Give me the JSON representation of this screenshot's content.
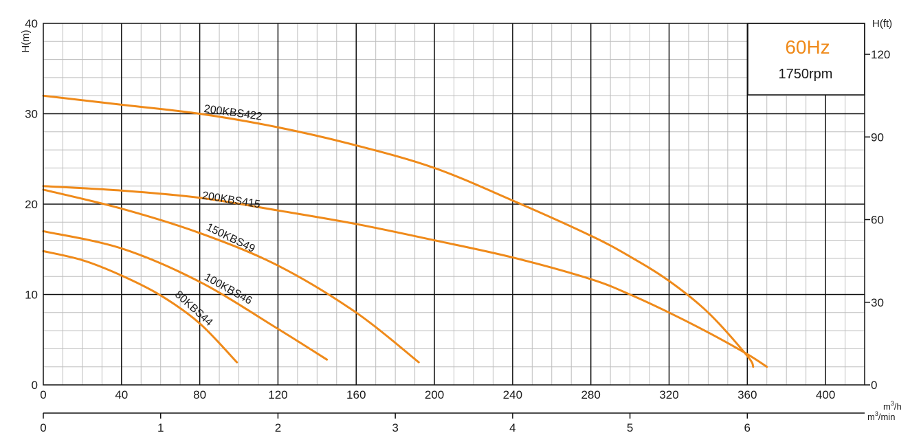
{
  "chart_data": {
    "type": "line",
    "title": "",
    "frequency_label": "60Hz",
    "speed_label": "1750rpm",
    "colors": {
      "curve": "#ef8a1a",
      "frequency_text": "#ef8a1a",
      "grid_major": "#111111",
      "grid_minor": "#bdbdbd"
    },
    "grid": true,
    "x": {
      "label_primary": "m³/h",
      "label_primary_base": "m",
      "label_primary_sup": "3",
      "label_primary_tail": "/h",
      "label_secondary_base": "m",
      "label_secondary_sup": "3",
      "label_secondary_tail": "/min",
      "range": [
        0,
        420
      ],
      "ticks": [
        0,
        40,
        80,
        120,
        160,
        200,
        240,
        280,
        320,
        360,
        400
      ],
      "tick_labels": [
        "0",
        "40",
        "80",
        "120",
        "160",
        "200",
        "240",
        "280",
        "320",
        "360",
        "400"
      ],
      "secondary_ticks": [
        0,
        1,
        2,
        3,
        4,
        5,
        6
      ],
      "secondary_tick_labels": [
        "0",
        "1",
        "2",
        "3",
        "4",
        "5",
        "6"
      ]
    },
    "y": {
      "label_left": "H(m)",
      "label_right": "H(ft)",
      "range": [
        0,
        40
      ],
      "ticks": [
        0,
        10,
        20,
        30,
        40
      ],
      "tick_labels": [
        "0",
        "10",
        "20",
        "30",
        "40"
      ],
      "right_ticks_ft": [
        0,
        30,
        60,
        90,
        120
      ],
      "right_tick_labels": [
        "0",
        "30",
        "60",
        "90",
        "120"
      ]
    },
    "series": [
      {
        "name": "200KBS422",
        "x": [
          0,
          40,
          80,
          120,
          160,
          200,
          240,
          280,
          300,
          320,
          340,
          360,
          363
        ],
        "y": [
          32,
          31,
          30,
          28.5,
          26.5,
          24,
          20.4,
          16.5,
          14.2,
          11.5,
          8,
          3.2,
          2
        ]
      },
      {
        "name": "200KBS415",
        "x": [
          0,
          40,
          80,
          120,
          160,
          200,
          240,
          280,
          300,
          320,
          340,
          360,
          370
        ],
        "y": [
          22,
          21.5,
          20.7,
          19.3,
          17.8,
          16,
          14.1,
          11.7,
          10,
          8,
          5.8,
          3.4,
          2
        ]
      },
      {
        "name": "150KBS49",
        "x": [
          0,
          40,
          80,
          120,
          160,
          192
        ],
        "y": [
          21.6,
          19.5,
          16.8,
          13.2,
          8,
          2.5
        ]
      },
      {
        "name": "100KBS46",
        "x": [
          0,
          40,
          80,
          120,
          145
        ],
        "y": [
          17,
          15.1,
          11.4,
          6.2,
          2.8
        ]
      },
      {
        "name": "80KBS44",
        "x": [
          0,
          20,
          40,
          60,
          80,
          99
        ],
        "y": [
          14.8,
          13.8,
          12.1,
          9.9,
          6.8,
          2.5
        ]
      }
    ]
  }
}
